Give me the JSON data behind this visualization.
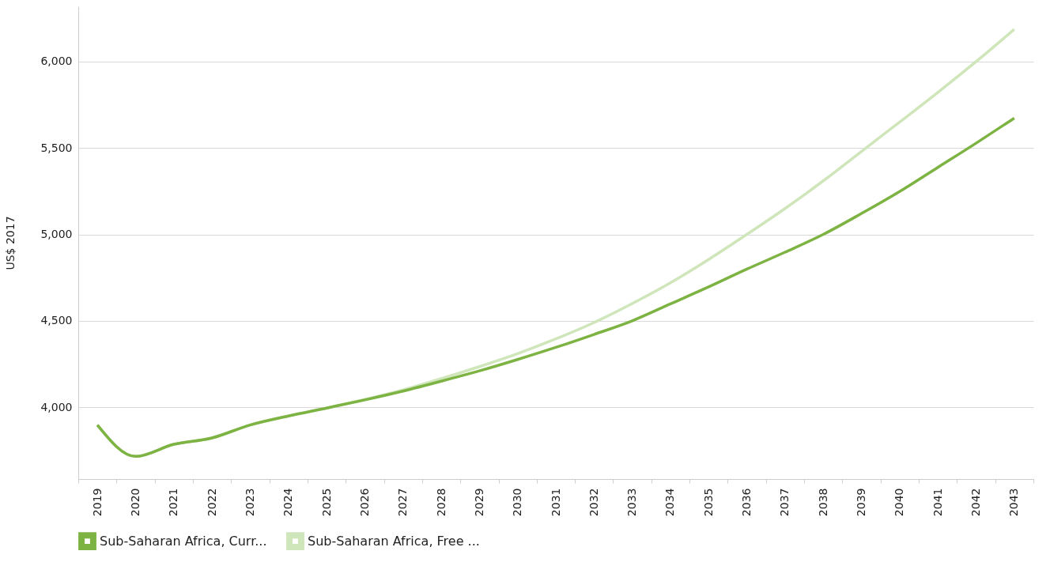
{
  "chart_data": {
    "type": "line",
    "ylabel": "US$ 2017",
    "categories": [
      "2019",
      "2020",
      "2021",
      "2022",
      "2023",
      "2024",
      "2025",
      "2026",
      "2027",
      "2028",
      "2029",
      "2030",
      "2031",
      "2032",
      "2033",
      "2034",
      "2035",
      "2036",
      "2037",
      "2038",
      "2039",
      "2040",
      "2041",
      "2042",
      "2043"
    ],
    "series": [
      {
        "name": "Sub-Saharan Africa, Curr...",
        "color": "#7cb342",
        "values": [
          3897,
          3715,
          3785,
          3822,
          3897,
          3949,
          3995,
          4042,
          4093,
          4150,
          4210,
          4276,
          4346,
          4421,
          4500,
          4598,
          4696,
          4799,
          4897,
          5000,
          5121,
          5248,
          5388,
          5528,
          5673
        ]
      },
      {
        "name": "Sub-Saharan Africa, Free ...",
        "color": "#cfe5ba",
        "values": [
          3897,
          3715,
          3785,
          3822,
          3897,
          3949,
          3995,
          4045,
          4100,
          4165,
          4235,
          4310,
          4395,
          4490,
          4600,
          4720,
          4855,
          5000,
          5150,
          5310,
          5480,
          5650,
          5822,
          6000,
          6187
        ]
      }
    ],
    "ylim": [
      3584,
      6320
    ],
    "yticks": [
      {
        "value": 4000,
        "label": "4,000"
      },
      {
        "value": 4500,
        "label": "4,500"
      },
      {
        "value": 5000,
        "label": "5,000"
      },
      {
        "value": 5500,
        "label": "5,500"
      },
      {
        "value": 6000,
        "label": "6,000"
      }
    ],
    "grid": "y",
    "legend": "bottom left",
    "line_style": "solid",
    "marker": "none"
  }
}
